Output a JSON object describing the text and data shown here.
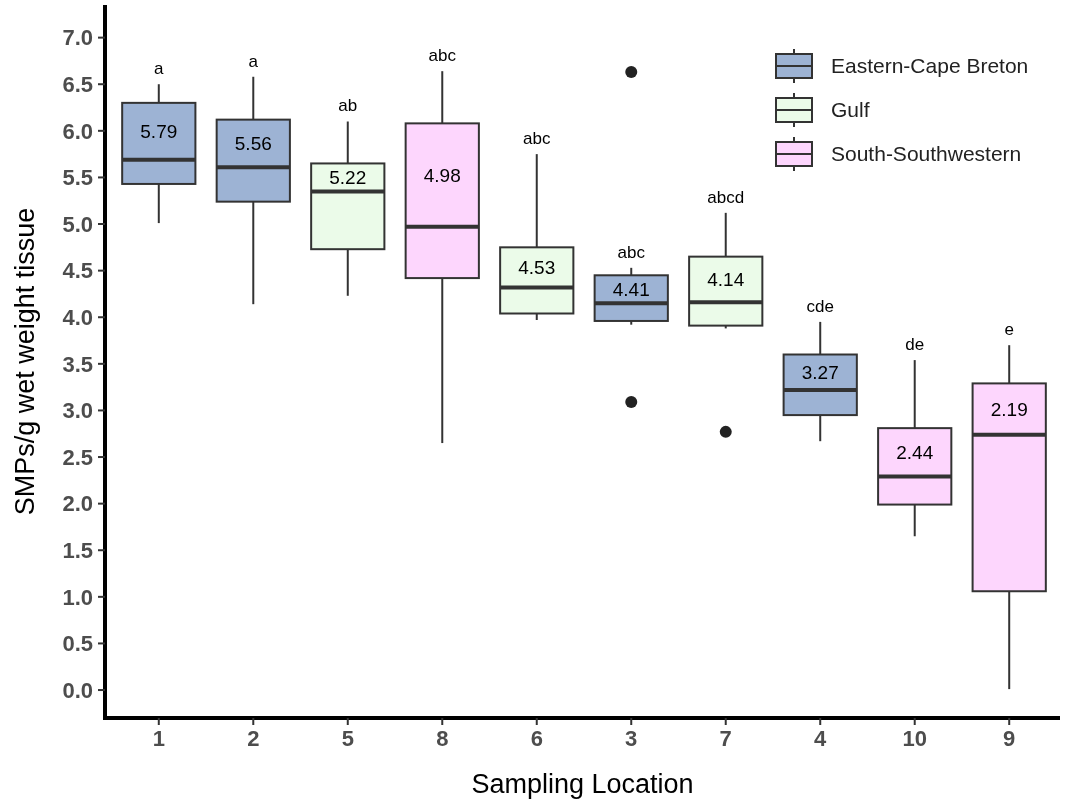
{
  "chart_data": {
    "type": "box",
    "xlabel": "Sampling Location",
    "ylabel": "SMPs/g wet weight tissue",
    "categories": [
      "1",
      "2",
      "5",
      "8",
      "6",
      "3",
      "7",
      "4",
      "10",
      "9"
    ],
    "ylim": [
      -0.3,
      7.35
    ],
    "yticks": [
      {
        "value": 0,
        "label": "0.0"
      },
      {
        "value": 0.5,
        "label": "0.5"
      },
      {
        "value": 1,
        "label": "1.0"
      },
      {
        "value": 1.5,
        "label": "1.5"
      },
      {
        "value": 2,
        "label": "2.0"
      },
      {
        "value": 2.5,
        "label": "2.5"
      },
      {
        "value": 3,
        "label": "3.0"
      },
      {
        "value": 3.5,
        "label": "3.5"
      },
      {
        "value": 4,
        "label": "4.0"
      },
      {
        "value": 4.5,
        "label": "4.5"
      },
      {
        "value": 5,
        "label": "5.0"
      },
      {
        "value": 5.5,
        "label": "5.5"
      },
      {
        "value": 6,
        "label": "6.0"
      },
      {
        "value": 6.5,
        "label": "6.5"
      },
      {
        "value": 7,
        "label": "7.0"
      }
    ],
    "legend": "top right",
    "series": [
      {
        "name": "Eastern-Cape Breton",
        "color": "#9db3d4",
        "boxes": [
          {
            "low": 5.01,
            "q1": 5.43,
            "median": 5.69,
            "q3": 6.3,
            "high": 6.5
          },
          {
            "low": 4.14,
            "q1": 5.24,
            "median": 5.61,
            "q3": 6.12,
            "high": 6.58
          },
          null,
          null,
          null,
          {
            "low": 3.92,
            "q1": 3.96,
            "median": 4.15,
            "q3": 4.45,
            "high": 4.53,
            "outliers": [
              6.63,
              3.09
            ]
          },
          null,
          {
            "low": 2.67,
            "q1": 2.95,
            "median": 3.22,
            "q3": 3.6,
            "high": 3.95
          },
          null,
          null
        ]
      },
      {
        "name": "Gulf",
        "color": "#ebfbe9",
        "boxes": [
          null,
          null,
          {
            "low": 4.23,
            "q1": 4.73,
            "median": 5.35,
            "q3": 5.65,
            "high": 6.1
          },
          null,
          {
            "low": 3.97,
            "q1": 4.04,
            "median": 4.32,
            "q3": 4.75,
            "high": 5.75
          },
          null,
          {
            "low": 3.88,
            "q1": 3.91,
            "median": 4.16,
            "q3": 4.65,
            "high": 5.12,
            "outliers": [
              2.77
            ]
          },
          null,
          null,
          null
        ]
      },
      {
        "name": "South-Southwestern",
        "color": "#fdd6fd",
        "boxes": [
          null,
          null,
          null,
          {
            "low": 2.65,
            "q1": 4.42,
            "median": 4.97,
            "q3": 6.08,
            "high": 6.64
          },
          null,
          null,
          null,
          null,
          {
            "low": 1.65,
            "q1": 1.99,
            "median": 2.29,
            "q3": 2.81,
            "high": 3.54
          },
          {
            "low": 0.01,
            "q1": 1.06,
            "median": 2.74,
            "q3": 3.29,
            "high": 3.7
          }
        ]
      }
    ],
    "annotations": [
      "a",
      "5.79",
      "a",
      "5.56",
      "ab",
      "5.22",
      "abc",
      "4.98",
      "abc",
      "4.53",
      "abc",
      "4.41",
      "abcd",
      "4.14",
      "cde",
      "3.27",
      "de",
      "2.44",
      "e",
      "2.19"
    ]
  }
}
